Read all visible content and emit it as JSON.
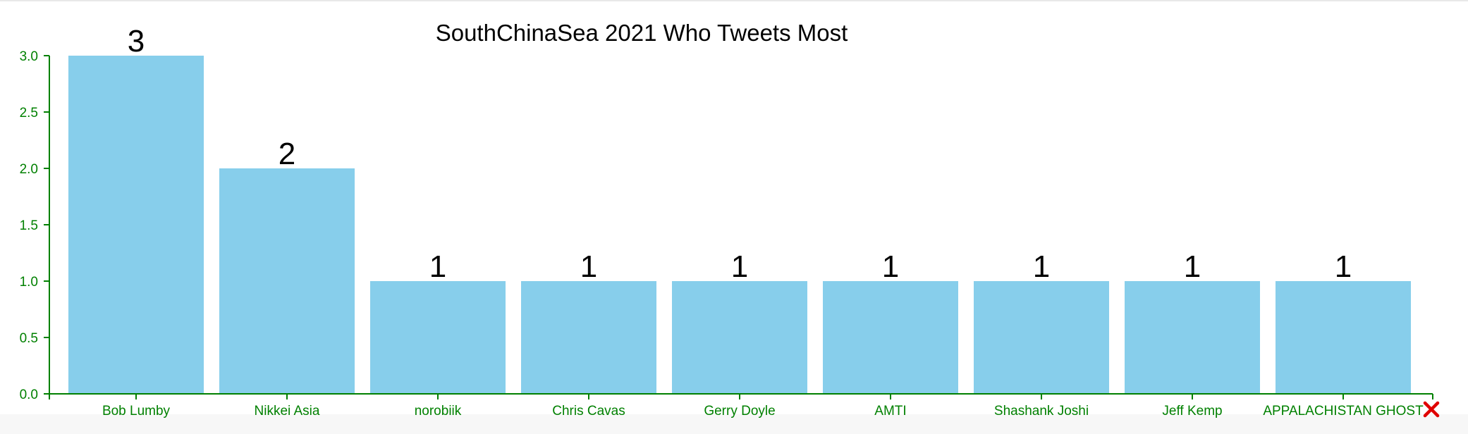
{
  "chart_data": {
    "type": "bar",
    "title": "SouthChinaSea 2021 Who Tweets Most",
    "categories": [
      "Bob Lumby",
      "Nikkei Asia",
      "norobiik",
      "Chris Cavas",
      "Gerry Doyle",
      "AMTI",
      "Shashank Joshi",
      "Jeff Kemp",
      "APPALACHISTAN GHOST"
    ],
    "values": [
      3,
      2,
      1,
      1,
      1,
      1,
      1,
      1,
      1
    ],
    "xlabel": "",
    "ylabel": "",
    "ylim": [
      0,
      3
    ],
    "yticks": [
      "0.0",
      "0.5",
      "1.0",
      "1.5",
      "2.0",
      "2.5",
      "3.0"
    ],
    "grid": false,
    "colors": {
      "bar": "#87ceeb",
      "axis": "#008000",
      "labels": "#000000"
    }
  },
  "controls": {
    "close_icon": "close-icon",
    "close_color": "#e00000"
  }
}
